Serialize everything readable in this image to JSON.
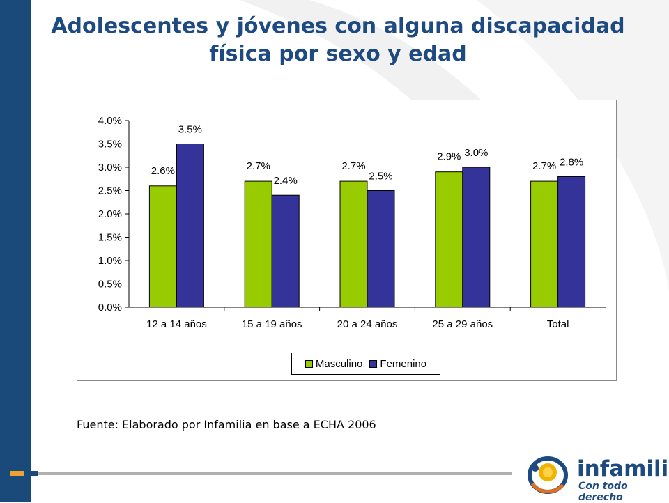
{
  "title": {
    "line1": "Adolescentes y jóvenes con alguna discapacidad",
    "line2": "física por sexo y edad"
  },
  "source": "Fuente: Elaborado por Infamilia en base a ECHA 2006",
  "logo": {
    "name": "infamilia",
    "tagline": "Con todo derecho"
  },
  "colors": {
    "title": "#1e4a82",
    "left_bar": "#1a4a7a",
    "masculino": "#99cc00",
    "femenino": "#333399"
  },
  "chart_data": {
    "type": "bar",
    "categories": [
      "12 a 14 años",
      "15 a 19 años",
      "20 a 24 años",
      "25 a 29 años",
      "Total"
    ],
    "series": [
      {
        "name": "Masculino",
        "values": [
          2.6,
          2.7,
          2.7,
          2.9,
          2.7
        ],
        "labels": [
          "2.6%",
          "2.7%",
          "2.7%",
          "2.9%",
          "2.7%"
        ]
      },
      {
        "name": "Femenino",
        "values": [
          3.5,
          2.4,
          2.5,
          3.0,
          2.8
        ],
        "labels": [
          "3.5%",
          "2.4%",
          "2.5%",
          "3.0%",
          "2.8%"
        ]
      }
    ],
    "ylim": [
      0,
      4.0
    ],
    "yticks": [
      "0.0%",
      "0.5%",
      "1.0%",
      "1.5%",
      "2.0%",
      "2.5%",
      "3.0%",
      "3.5%",
      "4.0%"
    ],
    "xlabel": "",
    "ylabel": "",
    "legend_position": "bottom",
    "grid": false
  }
}
